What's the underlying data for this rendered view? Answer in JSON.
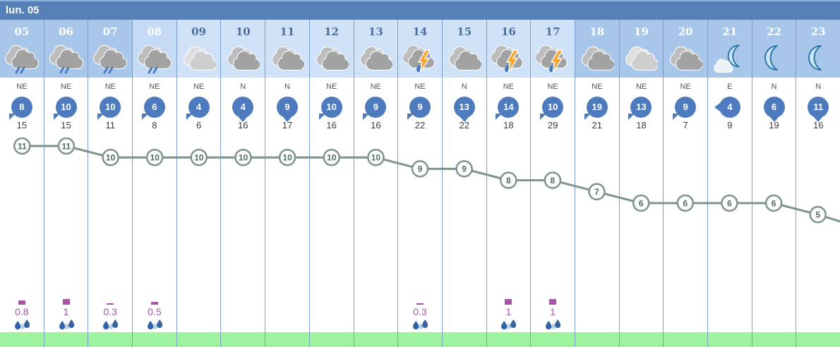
{
  "title": {
    "day_label": "lun. 05"
  },
  "columns": [
    {
      "hour": "05",
      "icon": "rain-cloud",
      "tone": "night",
      "wind_dir": "NE",
      "wind_speed": 8,
      "wind_gust": 15,
      "temp": 11,
      "precip_mm": "0.8"
    },
    {
      "hour": "06",
      "icon": "rain-cloud",
      "tone": "night",
      "wind_dir": "NE",
      "wind_speed": 10,
      "wind_gust": 15,
      "temp": 11,
      "precip_mm": "1"
    },
    {
      "hour": "07",
      "icon": "rain-cloud",
      "tone": "night",
      "wind_dir": "NE",
      "wind_speed": 10,
      "wind_gust": 11,
      "temp": 10,
      "precip_mm": "0.3"
    },
    {
      "hour": "08",
      "icon": "rain-cloud",
      "tone": "dawn",
      "wind_dir": "NE",
      "wind_speed": 6,
      "wind_gust": 8,
      "temp": 10,
      "precip_mm": "0.5"
    },
    {
      "hour": "09",
      "icon": "light-clouds",
      "tone": "day",
      "wind_dir": "NE",
      "wind_speed": 4,
      "wind_gust": 6,
      "temp": 10,
      "precip_mm": ""
    },
    {
      "hour": "10",
      "icon": "cloudy",
      "tone": "day",
      "wind_dir": "N",
      "wind_speed": 4,
      "wind_gust": 16,
      "temp": 10,
      "precip_mm": ""
    },
    {
      "hour": "11",
      "icon": "cloudy",
      "tone": "day",
      "wind_dir": "N",
      "wind_speed": 9,
      "wind_gust": 17,
      "temp": 10,
      "precip_mm": ""
    },
    {
      "hour": "12",
      "icon": "cloudy",
      "tone": "day",
      "wind_dir": "NE",
      "wind_speed": 10,
      "wind_gust": 16,
      "temp": 10,
      "precip_mm": ""
    },
    {
      "hour": "13",
      "icon": "cloudy",
      "tone": "day",
      "wind_dir": "NE",
      "wind_speed": 9,
      "wind_gust": 16,
      "temp": 10,
      "precip_mm": ""
    },
    {
      "hour": "14",
      "icon": "storm",
      "tone": "day",
      "wind_dir": "NE",
      "wind_speed": 9,
      "wind_gust": 22,
      "temp": 9,
      "precip_mm": "0.3"
    },
    {
      "hour": "15",
      "icon": "cloudy",
      "tone": "day",
      "wind_dir": "N",
      "wind_speed": 13,
      "wind_gust": 22,
      "temp": 9,
      "precip_mm": ""
    },
    {
      "hour": "16",
      "icon": "storm",
      "tone": "day",
      "wind_dir": "NE",
      "wind_speed": 14,
      "wind_gust": 18,
      "temp": 8,
      "precip_mm": "1"
    },
    {
      "hour": "17",
      "icon": "storm",
      "tone": "day",
      "wind_dir": "NE",
      "wind_speed": 10,
      "wind_gust": 29,
      "temp": 8,
      "precip_mm": "1"
    },
    {
      "hour": "18",
      "icon": "cloudy",
      "tone": "night",
      "wind_dir": "NE",
      "wind_speed": 19,
      "wind_gust": 21,
      "temp": 7,
      "precip_mm": ""
    },
    {
      "hour": "19",
      "icon": "light-clouds",
      "tone": "night",
      "wind_dir": "NE",
      "wind_speed": 13,
      "wind_gust": 18,
      "temp": 6,
      "precip_mm": ""
    },
    {
      "hour": "20",
      "icon": "cloudy",
      "tone": "night",
      "wind_dir": "NE",
      "wind_speed": 9,
      "wind_gust": 7,
      "temp": 6,
      "precip_mm": ""
    },
    {
      "hour": "21",
      "icon": "moon-cloud",
      "tone": "night",
      "wind_dir": "E",
      "wind_speed": 4,
      "wind_gust": 9,
      "temp": 6,
      "precip_mm": ""
    },
    {
      "hour": "22",
      "icon": "moon",
      "tone": "night",
      "wind_dir": "N",
      "wind_speed": 6,
      "wind_gust": 19,
      "temp": 6,
      "precip_mm": ""
    },
    {
      "hour": "23",
      "icon": "moon",
      "tone": "night",
      "wind_dir": "N",
      "wind_speed": 11,
      "wind_gust": 16,
      "temp": 5,
      "precip_mm": ""
    }
  ],
  "chart_data": {
    "type": "line",
    "title": "lun. 05",
    "x": [
      "05",
      "06",
      "07",
      "08",
      "09",
      "10",
      "11",
      "12",
      "13",
      "14",
      "15",
      "16",
      "17",
      "18",
      "19",
      "20",
      "21",
      "22",
      "23"
    ],
    "series": [
      {
        "name": "temperature",
        "values": [
          11,
          11,
          10,
          10,
          10,
          10,
          10,
          10,
          10,
          9,
          9,
          8,
          8,
          7,
          6,
          6,
          6,
          6,
          5
        ]
      },
      {
        "name": "precipitation_mm",
        "values": [
          0.8,
          1,
          0.3,
          0.5,
          null,
          null,
          null,
          null,
          null,
          0.3,
          null,
          1,
          1,
          null,
          null,
          null,
          null,
          null,
          null
        ]
      }
    ],
    "point_labels": true,
    "legend": "none",
    "grid": "vertical-hour-lines"
  },
  "colors": {
    "header_bg": "#5681b8",
    "night_col_bg": "#a7c6e9",
    "dawn_col_bg": "#c5daf4",
    "day_col_bg": "#cfe2f8",
    "day_hour_text": "#4c6f9f",
    "wind_badge": "#4e7bbd",
    "temp_line": "#7e948a",
    "precip_accent": "#a855a8",
    "ground_strip": "#9ef39e",
    "grid_line": "#7b9fc9",
    "storm_bolt": "#f6a62c"
  }
}
